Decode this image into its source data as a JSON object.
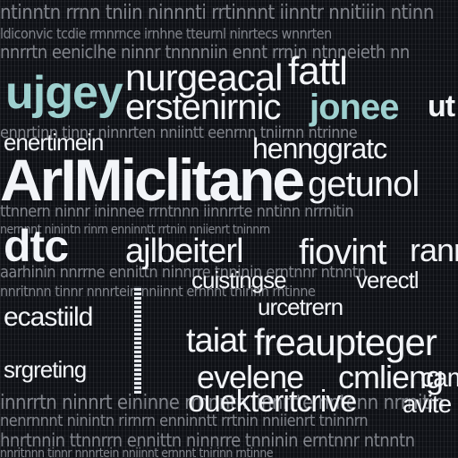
{
  "noise_rows": [
    "ntinntn rrnn tniin ninnnti rrtinnnt iinntr nnitiiin ntinn",
    "ldiconvic tcdie rmnrnce irnhne tteurnl ninrtecs wnnrten",
    "nnrrtn eeniclhe ninnr tnnnniin ennt rrnin ntnneieth nn",
    "ennrtinn tinnr ninnrten nniintt eenrnn tniirnn ntrinne",
    "ttnnern ninnr ininnee rrntnnn iinnrrte nntinn nrrnitin",
    "nernnnt ninintn rinrn enninntt rrtnin nniienrt tninnrn",
    "aarhinin nnrrne ennittn ninnrre tnninin erntnnr ntnntn",
    "nnritnnn tinnr nnnrtein nniinnt ernnnt tnirinn rntinne",
    "innrrtn ninnrt eininne rrnnntn iinnrrte nntenn nrrnitin",
    "nenrnnnt ninintn rirnrn enninntt rrtnin nniienrt tninnrn",
    "hnrtnnin ttnnrrn ennittn ninnrre tnninin erntnnr ntnntn",
    "nnritnnn tinnr nnnrtein nniinnt ernnnt tnirinn rntinne"
  ],
  "words": {
    "ujgey": "ujgey",
    "nurgeacal": "nurgeacal",
    "fattl": "fattl",
    "erstenirnic": "erstenirnic",
    "jonee": "jonee",
    "ut": "ut",
    "enertimein": "enertimein",
    "hennggratc": "hennggratc",
    "arimiclitane": "ArIMiclitane",
    "getunol": "getunol",
    "dtc": "dtc",
    "ajlbeiterl": "ajlbeiterl",
    "fiovint": "fiovint",
    "ranr": "ranr",
    "cuistingse": "cuistingse",
    "verectl": "verectl",
    "urcetrern": "urcetrern",
    "ecastiild": "ecastiild",
    "taiat": "taiat",
    "freaupteger": "freaupteger",
    "srgreting": "srgreting",
    "evelene": "evelene",
    "cmlieng": "cmlieng",
    "cam": "cam",
    "ouekteritcrive": "ouekteritcrive",
    "avite": "avite"
  },
  "colors": {
    "background": "#0f1116",
    "text": "#f2f4f8",
    "accent": "#9ed0cf"
  }
}
